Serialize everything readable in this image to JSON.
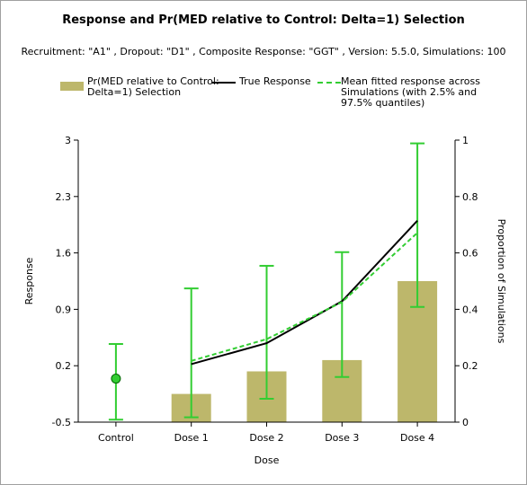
{
  "title": "Response and Pr(MED relative to Control: Delta=1) Selection",
  "subtitle": "Recruitment: \"A1\" , Dropout: \"D1\" , Composite Response: \"GGT\" , Version: 5.5.0, Simulations: 100",
  "legend": {
    "bars_label": "Pr(MED relative to Control:\nDelta=1) Selection",
    "true_label": "True Response",
    "mean_label": "Mean fitted response across\nSimulations (with 2.5% and\n97.5% quantiles)"
  },
  "colors": {
    "bars": "#bdb76b",
    "true_line": "#000000",
    "mean_line": "#32cd32",
    "marker": "#32cd32"
  },
  "chart_data": {
    "type": "bar+line",
    "categories": [
      "Control",
      "Dose 1",
      "Dose 2",
      "Dose 3",
      "Dose 4"
    ],
    "xlabel": "Dose",
    "ylabel_left": "Response",
    "ylabel_right": "Proportion of Simulations",
    "ylim_left": [
      -0.5,
      3
    ],
    "yticks_left": [
      "-0.5",
      "0.2",
      "0.9",
      "1.6",
      "2.3",
      "3"
    ],
    "ylim_right": [
      0,
      1
    ],
    "yticks_right": [
      "0",
      "0.2",
      "0.4",
      "0.6",
      "0.8",
      "1"
    ],
    "grid": false,
    "bars": {
      "name": "Pr(MED relative to Control: Delta=1) Selection",
      "axis": "right",
      "values": [
        null,
        0.1,
        0.18,
        0.22,
        0.5
      ]
    },
    "true_response": {
      "name": "True Response",
      "axis": "left",
      "values": [
        null,
        0.22,
        0.48,
        1.0,
        2.0
      ]
    },
    "mean_fitted": {
      "name": "Mean fitted response across Simulations (with 2.5% and 97.5% quantiles)",
      "axis": "left",
      "values": [
        0.04,
        0.26,
        0.53,
        0.99,
        1.85
      ],
      "lower": [
        -0.47,
        -0.44,
        -0.21,
        0.06,
        0.93
      ],
      "upper": [
        0.47,
        1.16,
        1.44,
        1.61,
        2.96
      ]
    }
  }
}
